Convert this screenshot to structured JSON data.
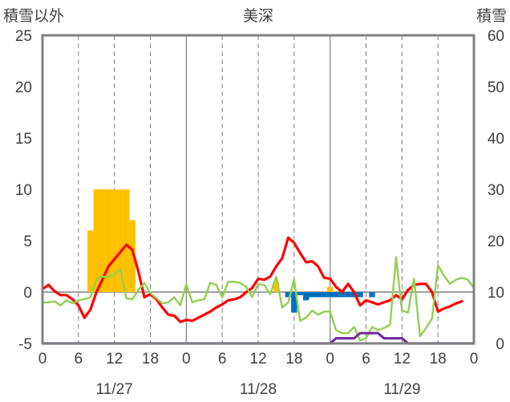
{
  "header": {
    "left_label": "積雪以外",
    "title": "美深",
    "right_label": "積雪"
  },
  "colors": {
    "precip_bar": "#FFC000",
    "negative_bar": "#0070C0",
    "temperature": "#FF0000",
    "wind": "#92D050",
    "snow_depth": "#7030A0",
    "frame": "#808080"
  },
  "chart_data": {
    "type": "line",
    "title": "美深",
    "x": {
      "ticks": [
        "0",
        "6",
        "12",
        "18",
        "0",
        "6",
        "12",
        "18",
        "0",
        "6",
        "12",
        "18",
        "0"
      ],
      "date_labels": [
        "11/27",
        "11/28",
        "11/29"
      ],
      "range_hours": [
        0,
        72
      ]
    },
    "y_left": {
      "label": "積雪以外",
      "range": [
        -5,
        25
      ],
      "ticks": [
        "25",
        "20",
        "15",
        "10",
        "5",
        "0",
        "-5"
      ]
    },
    "y_right": {
      "label": "積雪",
      "range": [
        0,
        60
      ],
      "ticks": [
        "60",
        "50",
        "40",
        "30",
        "20",
        "10",
        "0"
      ]
    },
    "grid": "vertical dashed every 6h, solid at day boundaries",
    "series": [
      {
        "type": "bar",
        "axis": "left",
        "points": [
          [
            8,
            6
          ],
          [
            9,
            10
          ],
          [
            10,
            10
          ],
          [
            11,
            10
          ],
          [
            12,
            10
          ],
          [
            13,
            10
          ],
          [
            14,
            10
          ],
          [
            15,
            7
          ],
          [
            39,
            1
          ],
          [
            48,
            0.5
          ]
        ]
      },
      {
        "type": "bar",
        "axis": "left",
        "points": [
          [
            41,
            -0.5
          ],
          [
            42,
            -2
          ],
          [
            43,
            -0.3
          ],
          [
            44,
            -0.8
          ],
          [
            45,
            -0.5
          ],
          [
            46,
            -0.5
          ],
          [
            47,
            -0.5
          ],
          [
            48,
            -0.5
          ],
          [
            49,
            -0.5
          ],
          [
            50,
            -0.5
          ],
          [
            51,
            -0.5
          ],
          [
            52,
            -0.5
          ],
          [
            53,
            -0.5
          ],
          [
            55,
            -0.5
          ]
        ]
      },
      {
        "type": "line",
        "axis": "left",
        "points": [
          [
            0,
            0.3
          ],
          [
            1,
            0.7
          ],
          [
            2,
            0.1
          ],
          [
            3,
            -0.3
          ],
          [
            4,
            -0.3
          ],
          [
            5,
            -0.7
          ],
          [
            6,
            -1.3
          ],
          [
            7,
            -2.5
          ],
          [
            8,
            -1.7
          ],
          [
            9,
            0
          ],
          [
            10,
            1.2
          ],
          [
            11,
            2.5
          ],
          [
            12,
            3.2
          ],
          [
            13,
            3.9
          ],
          [
            14,
            4.6
          ],
          [
            15,
            4.1
          ],
          [
            16,
            2
          ],
          [
            17,
            -0.5
          ],
          [
            18,
            -0.2
          ],
          [
            19,
            -0.7
          ],
          [
            20,
            -1.5
          ],
          [
            21,
            -2.2
          ],
          [
            22,
            -2.3
          ],
          [
            23,
            -2.9
          ],
          [
            24,
            -2.7
          ],
          [
            25,
            -2.8
          ],
          [
            26,
            -2.5
          ],
          [
            27,
            -2.2
          ],
          [
            28,
            -1.9
          ],
          [
            29,
            -1.5
          ],
          [
            30,
            -1.2
          ],
          [
            31,
            -0.8
          ],
          [
            32,
            -0.7
          ],
          [
            33,
            -0.5
          ],
          [
            34,
            0
          ],
          [
            35,
            0.4
          ],
          [
            36,
            1.3
          ],
          [
            37,
            1.2
          ],
          [
            38,
            1.5
          ],
          [
            39,
            2.5
          ],
          [
            40,
            3.3
          ],
          [
            41,
            5.3
          ],
          [
            42,
            4.8
          ],
          [
            43,
            3.8
          ],
          [
            44,
            2.9
          ],
          [
            45,
            3
          ],
          [
            46,
            2.5
          ],
          [
            47,
            1.4
          ],
          [
            48,
            1.3
          ],
          [
            49,
            0.5
          ],
          [
            50,
            0
          ],
          [
            51,
            0.8
          ],
          [
            52,
            0
          ],
          [
            53,
            -1.3
          ],
          [
            54,
            -0.8
          ],
          [
            55,
            -1
          ],
          [
            56,
            -1.2
          ],
          [
            57,
            -1
          ],
          [
            58,
            -0.8
          ],
          [
            59,
            -0.3
          ],
          [
            60,
            -0.7
          ],
          [
            61,
            0.2
          ],
          [
            62,
            0.7
          ],
          [
            63,
            0.8
          ],
          [
            64,
            0.8
          ],
          [
            65,
            0
          ],
          [
            66,
            -1.9
          ],
          [
            67,
            -1.6
          ],
          [
            68,
            -1.4
          ],
          [
            69,
            -1.1
          ],
          [
            70,
            -0.9
          ]
        ]
      },
      {
        "type": "line",
        "axis": "left",
        "points": [
          [
            0,
            -1
          ],
          [
            1,
            -1
          ],
          [
            2,
            -0.9
          ],
          [
            3,
            -1.3
          ],
          [
            4,
            -0.8
          ],
          [
            5,
            -1.1
          ],
          [
            6,
            -0.8
          ],
          [
            7,
            -0.7
          ],
          [
            8,
            -0.5
          ],
          [
            9,
            1.2
          ],
          [
            10,
            1.5
          ],
          [
            11,
            1.5
          ],
          [
            12,
            1.7
          ],
          [
            13,
            2.2
          ],
          [
            14,
            -0.6
          ],
          [
            15,
            -0.7
          ],
          [
            16,
            0.2
          ],
          [
            17,
            0.9
          ],
          [
            18,
            -0.1
          ],
          [
            19,
            -0.6
          ],
          [
            20,
            -1.1
          ],
          [
            21,
            -1
          ],
          [
            22,
            -0.5
          ],
          [
            23,
            -1.3
          ],
          [
            24,
            0.8
          ],
          [
            25,
            -1
          ],
          [
            26,
            -0.8
          ],
          [
            27,
            -0.7
          ],
          [
            28,
            0.9
          ],
          [
            29,
            0.7
          ],
          [
            30,
            -0.5
          ],
          [
            31,
            1
          ],
          [
            32,
            1
          ],
          [
            33,
            0.9
          ],
          [
            34,
            0.5
          ],
          [
            35,
            -0.5
          ],
          [
            36,
            0.8
          ],
          [
            37,
            0.7
          ],
          [
            38,
            -0.2
          ],
          [
            39,
            1.5
          ],
          [
            40,
            -1.5
          ],
          [
            41,
            -1
          ],
          [
            42,
            1.2
          ],
          [
            43,
            -2.8
          ],
          [
            44,
            -2.5
          ],
          [
            45,
            -1.8
          ],
          [
            46,
            -2.2
          ],
          [
            47,
            -1.9
          ],
          [
            48,
            -1.9
          ],
          [
            49,
            -3.7
          ],
          [
            50,
            -4
          ],
          [
            51,
            -4
          ],
          [
            52,
            -3.4
          ],
          [
            53,
            -4.7
          ],
          [
            54,
            -4.5
          ],
          [
            55,
            -3.4
          ],
          [
            56,
            -3.7
          ],
          [
            57,
            -3.5
          ],
          [
            58,
            -3.2
          ],
          [
            59,
            3.4
          ],
          [
            60,
            -1.8
          ],
          [
            61,
            -2
          ],
          [
            62,
            1.3
          ],
          [
            63,
            -4.3
          ],
          [
            64,
            -3.5
          ],
          [
            65,
            -2.6
          ],
          [
            66,
            2.6
          ],
          [
            67,
            1.6
          ],
          [
            68,
            0.8
          ],
          [
            69,
            1.2
          ],
          [
            70,
            1.4
          ],
          [
            71,
            1.2
          ],
          [
            72,
            0.4
          ]
        ]
      },
      {
        "type": "line",
        "axis": "right",
        "points": [
          [
            0,
            0
          ],
          [
            48,
            0
          ],
          [
            49,
            1
          ],
          [
            51,
            1
          ],
          [
            52,
            1
          ],
          [
            53,
            2
          ],
          [
            56,
            2
          ],
          [
            57,
            1
          ],
          [
            60,
            1
          ],
          [
            61,
            0
          ],
          [
            72,
            0
          ]
        ]
      }
    ]
  }
}
